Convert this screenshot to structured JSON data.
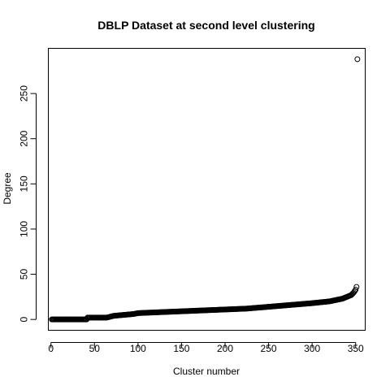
{
  "chart_data": {
    "type": "scatter",
    "title": "DBLP Dataset at second level clustering",
    "xlabel": "Cluster number",
    "ylabel": "Degree",
    "xlim": [
      -3,
      361
    ],
    "ylim": [
      -12,
      300
    ],
    "x_ticks": [
      0,
      50,
      100,
      150,
      200,
      250,
      300,
      350
    ],
    "y_ticks": [
      0,
      50,
      100,
      150,
      200,
      250
    ],
    "grid": false,
    "legend": "none",
    "marker": "open-circle",
    "point_color": "#000000",
    "n_points": 352,
    "profile": [
      [
        1,
        0
      ],
      [
        41,
        0
      ],
      [
        42,
        2
      ],
      [
        64,
        2
      ],
      [
        72,
        4
      ],
      [
        95,
        6
      ],
      [
        100,
        7
      ],
      [
        125,
        8
      ],
      [
        150,
        9
      ],
      [
        175,
        10
      ],
      [
        200,
        11
      ],
      [
        225,
        12
      ],
      [
        250,
        14
      ],
      [
        275,
        16
      ],
      [
        300,
        18
      ],
      [
        320,
        20
      ],
      [
        335,
        23
      ],
      [
        340,
        25
      ],
      [
        345,
        27
      ],
      [
        348,
        30
      ],
      [
        350,
        33
      ],
      [
        351,
        36
      ]
    ],
    "outliers": [
      [
        352,
        288
      ]
    ]
  }
}
